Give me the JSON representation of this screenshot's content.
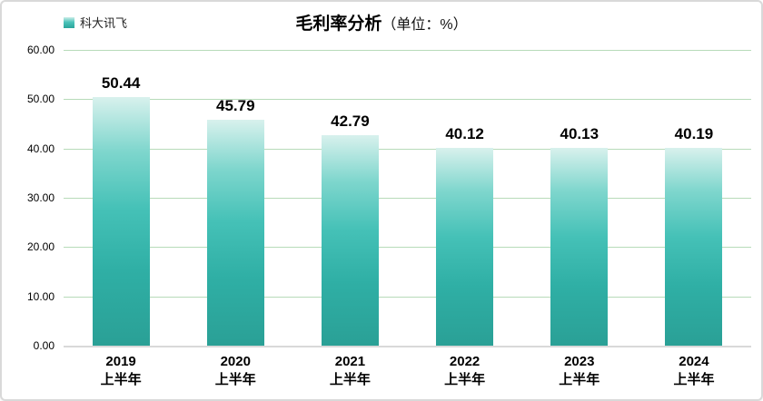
{
  "header": {
    "legend": {
      "label": "科大讯飞"
    },
    "title": {
      "main": "毛利率分析",
      "unit": "（单位：%）"
    }
  },
  "chart_data": {
    "type": "bar",
    "title": "毛利率分析（单位：%）",
    "series_name": "科大讯飞",
    "categories": [
      [
        "2019",
        "上半年"
      ],
      [
        "2020",
        "上半年"
      ],
      [
        "2021",
        "上半年"
      ],
      [
        "2022",
        "上半年"
      ],
      [
        "2023",
        "上半年"
      ],
      [
        "2024",
        "上半年"
      ]
    ],
    "values": [
      50.44,
      45.79,
      42.79,
      40.12,
      40.13,
      40.19
    ],
    "value_labels": [
      "50.44",
      "45.79",
      "42.79",
      "40.12",
      "40.13",
      "40.19"
    ],
    "ylabel": "",
    "xlabel": "",
    "ylim": [
      0,
      60
    ],
    "yticks": [
      "60.00",
      "50.00",
      "40.00",
      "30.00",
      "20.00",
      "10.00",
      "0.00"
    ],
    "grid": true,
    "legend_position": "top-left",
    "colors": {
      "bar_gradient_top": "#d8f1ed",
      "bar_gradient_bottom": "#2aa096",
      "gridline": "#b7dbb9",
      "axis_line": "#d9d9d9",
      "text": "#000000"
    }
  }
}
